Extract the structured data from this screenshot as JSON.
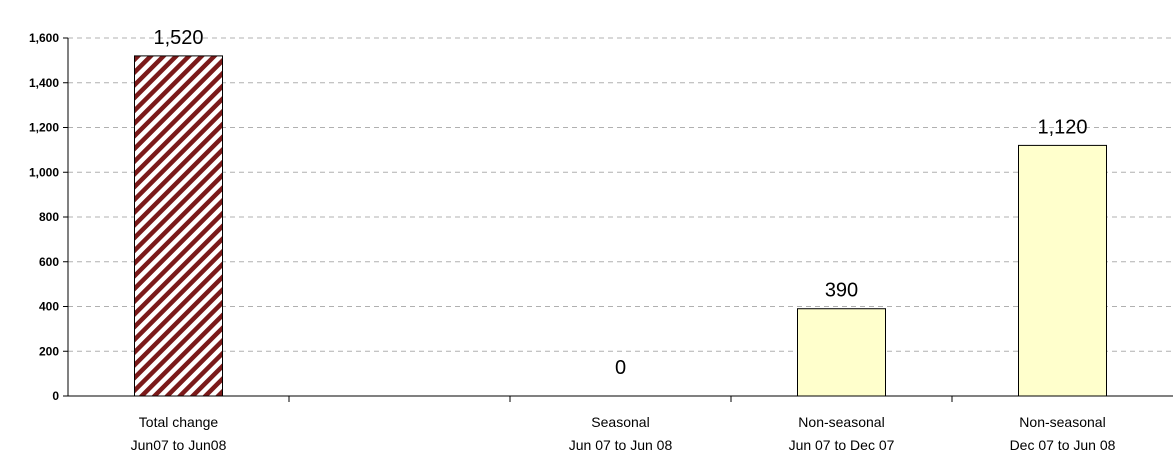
{
  "chart_data": {
    "type": "bar",
    "categories": [
      [
        "Total change",
        "Jun07 to Jun08"
      ],
      [
        "",
        ""
      ],
      [
        "Seasonal",
        "Jun 07 to Jun 08"
      ],
      [
        "Non-seasonal",
        "Jun 07 to Dec 07"
      ],
      [
        "Non-seasonal",
        "Dec 07 to Jun 08"
      ]
    ],
    "values": [
      1520,
      null,
      0,
      390,
      1120
    ],
    "data_labels": [
      "1,520",
      "",
      "0",
      "390",
      "1,120"
    ],
    "yticks": [
      "0",
      "200",
      "400",
      "600",
      "800",
      "1,000",
      "1,200",
      "1,400",
      "1,600"
    ],
    "ylim": [
      0,
      1600
    ],
    "grid": true,
    "title": "",
    "xlabel": "",
    "ylabel": "",
    "colors": {
      "hatch_stripe": "#7b1a1a",
      "hatch_base": "#ffffff",
      "bar_fill": "#ffffcc",
      "bar_stroke": "#000000",
      "grid": "#b0b0b0"
    },
    "bar_styles": [
      "hatched",
      "none",
      "solid",
      "solid",
      "solid"
    ]
  }
}
